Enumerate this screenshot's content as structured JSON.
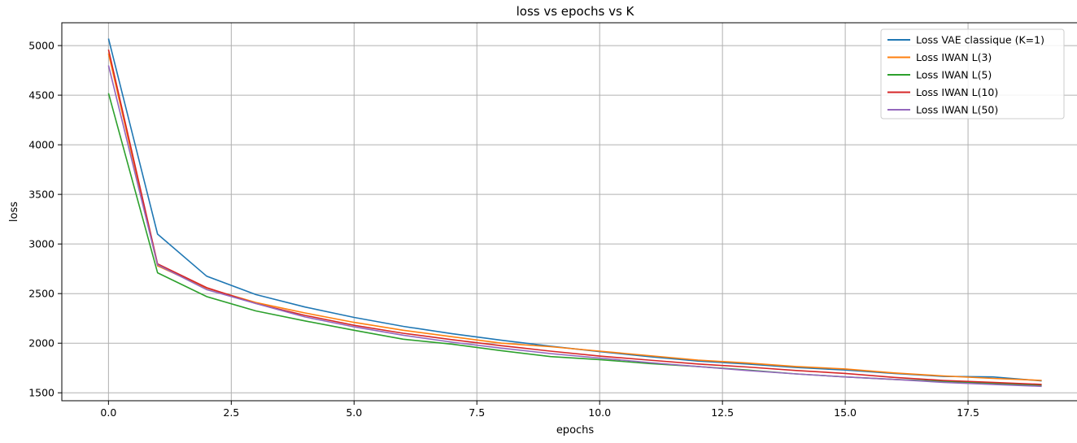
{
  "chart_data": {
    "type": "line",
    "title": "loss vs epochs vs K",
    "xlabel": "epochs",
    "ylabel": "loss",
    "xlim": [
      -0.95,
      19.95
    ],
    "ylim": [
      1420,
      5230
    ],
    "xticks": [
      0.0,
      2.5,
      5.0,
      7.5,
      10.0,
      12.5,
      15.0,
      17.5
    ],
    "xtick_labels": [
      "0.0",
      "2.5",
      "5.0",
      "7.5",
      "10.0",
      "12.5",
      "15.0",
      "17.5"
    ],
    "yticks": [
      1500,
      2000,
      2500,
      3000,
      3500,
      4000,
      4500,
      5000
    ],
    "ytick_labels": [
      "1500",
      "2000",
      "2500",
      "3000",
      "3500",
      "4000",
      "4500",
      "5000"
    ],
    "grid": true,
    "legend_position": "top-right",
    "x": [
      0,
      1,
      2,
      3,
      4,
      5,
      6,
      7,
      8,
      9,
      10,
      11,
      12,
      13,
      14,
      15,
      16,
      17,
      18,
      19
    ],
    "series": [
      {
        "name": "Loss VAE classique (K=1)",
        "color": "#1f77b4",
        "values": [
          5070,
          3100,
          2675,
          2490,
          2365,
          2260,
          2170,
          2095,
          2030,
          1970,
          1915,
          1865,
          1820,
          1790,
          1755,
          1730,
          1695,
          1665,
          1660,
          1620
        ]
      },
      {
        "name": "Loss IWAN L(3)",
        "color": "#ff7f0e",
        "values": [
          4920,
          2780,
          2555,
          2410,
          2305,
          2210,
          2130,
          2065,
          2000,
          1965,
          1920,
          1875,
          1830,
          1800,
          1765,
          1740,
          1700,
          1670,
          1645,
          1625
        ]
      },
      {
        "name": "Loss IWAN L(5)",
        "color": "#2ca02c",
        "values": [
          4520,
          2710,
          2470,
          2325,
          2225,
          2130,
          2040,
          1990,
          1925,
          1865,
          1835,
          1795,
          1765,
          1730,
          1690,
          1660,
          1635,
          1615,
          1595,
          1575
        ]
      },
      {
        "name": "Loss IWAN L(10)",
        "color": "#d62728",
        "values": [
          4960,
          2800,
          2560,
          2400,
          2280,
          2180,
          2100,
          2035,
          1975,
          1920,
          1870,
          1830,
          1790,
          1760,
          1725,
          1695,
          1655,
          1625,
          1605,
          1585
        ]
      },
      {
        "name": "Loss IWAN L(50)",
        "color": "#9467bd",
        "values": [
          4800,
          2790,
          2540,
          2400,
          2265,
          2165,
          2080,
          2010,
          1950,
          1895,
          1850,
          1805,
          1765,
          1725,
          1690,
          1660,
          1635,
          1605,
          1585,
          1565
        ]
      }
    ]
  }
}
